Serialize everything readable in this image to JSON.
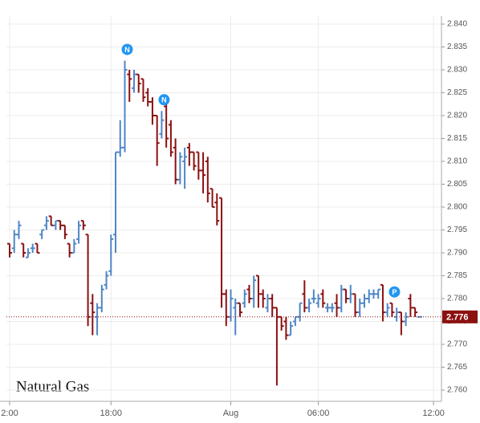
{
  "chart_data": {
    "type": "ohlc",
    "title": "Natural Gas",
    "categories": [
      "2:00",
      null,
      null,
      null,
      null,
      null,
      null,
      null,
      null,
      null,
      null,
      null,
      null,
      null,
      null,
      null,
      null,
      null,
      null,
      null,
      null,
      null,
      "18:00",
      null,
      null,
      null,
      null,
      null,
      null,
      null,
      null,
      null,
      null,
      null,
      null,
      null,
      null,
      null,
      null,
      null,
      null,
      null,
      null,
      null,
      null,
      null,
      null,
      null,
      "Aug",
      null,
      null,
      null,
      null,
      null,
      null,
      null,
      null,
      null,
      null,
      null,
      null,
      null,
      null,
      null,
      null,
      null,
      null,
      "06:00",
      null,
      null,
      null,
      null,
      null,
      null,
      null,
      null,
      null,
      null,
      null,
      null,
      null,
      null,
      null,
      null,
      null,
      null,
      null,
      null,
      null,
      null,
      null,
      null,
      "12:00"
    ],
    "open": [
      2.792,
      2.791,
      2.794,
      2.792,
      2.789,
      2.791,
      2.792,
      2.794,
      2.796,
      2.798,
      2.796,
      2.797,
      2.796,
      2.792,
      2.79,
      2.793,
      2.797,
      2.794,
      2.779,
      2.776,
      2.778,
      2.783,
      2.786,
      2.794,
      2.812,
      2.813,
      2.829,
      2.826,
      2.829,
      2.828,
      2.825,
      2.823,
      2.82,
      2.816,
      2.822,
      2.818,
      2.813,
      2.806,
      2.81,
      2.813,
      2.812,
      2.812,
      2.808,
      2.81,
      2.804,
      2.801,
      2.802,
      2.781,
      2.776,
      2.778,
      2.779,
      2.779,
      2.782,
      2.78,
      2.785,
      2.781,
      2.778,
      2.78,
      2.778,
      2.776,
      2.775,
      2.772,
      2.775,
      2.776,
      2.781,
      2.778,
      2.78,
      2.779,
      2.781,
      2.778,
      2.778,
      2.779,
      2.778,
      2.782,
      2.78,
      2.781,
      2.777,
      2.779,
      2.78,
      2.781,
      2.781,
      2.783,
      2.777,
      2.779,
      2.776,
      2.777,
      2.775,
      2.78,
      2.778,
      2.776,
      null,
      null,
      null
    ],
    "high": [
      2.792,
      2.795,
      2.797,
      2.792,
      2.791,
      2.792,
      2.792,
      2.795,
      2.798,
      2.798,
      2.797,
      2.797,
      2.796,
      2.792,
      2.793,
      2.797,
      2.797,
      2.794,
      2.781,
      2.779,
      2.783,
      2.786,
      2.794,
      2.812,
      2.819,
      2.832,
      2.83,
      2.83,
      2.829,
      2.828,
      2.826,
      2.824,
      2.82,
      2.821,
      2.823,
      2.819,
      2.815,
      2.812,
      2.813,
      2.814,
      2.812,
      2.812,
      2.812,
      2.811,
      2.804,
      2.803,
      2.802,
      2.782,
      2.782,
      2.78,
      2.779,
      2.782,
      2.783,
      2.785,
      2.785,
      2.782,
      2.781,
      2.781,
      2.778,
      2.776,
      2.776,
      2.775,
      2.776,
      2.779,
      2.784,
      2.78,
      2.782,
      2.781,
      2.782,
      2.779,
      2.779,
      2.781,
      2.783,
      2.782,
      2.783,
      2.781,
      2.78,
      2.781,
      2.782,
      2.782,
      2.782,
      2.783,
      2.779,
      2.779,
      2.778,
      2.777,
      2.777,
      2.781,
      2.778,
      2.776,
      null,
      null,
      null
    ],
    "low": [
      2.789,
      2.79,
      2.793,
      2.789,
      2.789,
      2.79,
      2.79,
      2.793,
      2.795,
      2.796,
      2.795,
      2.795,
      2.793,
      2.789,
      2.79,
      2.792,
      2.795,
      2.774,
      2.772,
      2.772,
      2.777,
      2.782,
      2.785,
      2.79,
      2.811,
      2.812,
      2.823,
      2.825,
      2.825,
      2.823,
      2.822,
      2.818,
      2.809,
      2.815,
      2.813,
      2.811,
      2.805,
      2.805,
      2.804,
      2.809,
      2.808,
      2.806,
      2.803,
      2.801,
      2.8,
      2.796,
      2.778,
      2.774,
      2.775,
      2.772,
      2.776,
      2.778,
      2.779,
      2.778,
      2.778,
      2.778,
      2.777,
      2.776,
      2.761,
      2.773,
      2.771,
      2.772,
      2.774,
      2.775,
      2.777,
      2.777,
      2.779,
      2.778,
      2.778,
      2.777,
      2.777,
      2.776,
      2.777,
      2.779,
      2.779,
      2.776,
      2.776,
      2.778,
      2.779,
      2.78,
      2.78,
      2.775,
      2.776,
      2.776,
      2.775,
      2.772,
      2.774,
      2.776,
      2.776,
      2.776,
      null,
      null,
      null
    ],
    "close": [
      2.79,
      2.794,
      2.796,
      2.79,
      2.79,
      2.791,
      2.79,
      2.795,
      2.797,
      2.796,
      2.797,
      2.796,
      2.794,
      2.79,
      2.792,
      2.796,
      2.796,
      2.776,
      2.777,
      2.778,
      2.782,
      2.785,
      2.793,
      2.812,
      2.813,
      2.83,
      2.828,
      2.829,
      2.827,
      2.824,
      2.823,
      2.82,
      2.814,
      2.819,
      2.815,
      2.812,
      2.806,
      2.811,
      2.811,
      2.812,
      2.809,
      2.808,
      2.807,
      2.803,
      2.8,
      2.797,
      2.781,
      2.776,
      2.78,
      2.779,
      2.777,
      2.781,
      2.78,
      2.784,
      2.781,
      2.78,
      2.78,
      2.778,
      2.776,
      2.774,
      2.772,
      2.774,
      2.776,
      2.779,
      2.778,
      2.779,
      2.78,
      2.78,
      2.779,
      2.778,
      2.778,
      2.778,
      2.782,
      2.78,
      2.781,
      2.777,
      2.779,
      2.78,
      2.781,
      2.781,
      2.782,
      2.777,
      2.778,
      2.777,
      2.777,
      2.775,
      2.776,
      2.778,
      2.777,
      2.776,
      null,
      null,
      null
    ],
    "markers": [
      null,
      null,
      null,
      null,
      null,
      null,
      null,
      null,
      null,
      null,
      null,
      null,
      null,
      null,
      null,
      null,
      null,
      null,
      null,
      null,
      null,
      null,
      null,
      null,
      null,
      "N",
      null,
      null,
      null,
      null,
      null,
      null,
      null,
      "N",
      null,
      null,
      null,
      null,
      null,
      null,
      null,
      null,
      null,
      null,
      null,
      null,
      null,
      null,
      null,
      null,
      null,
      null,
      null,
      null,
      null,
      null,
      null,
      null,
      null,
      null,
      null,
      null,
      null,
      null,
      null,
      null,
      null,
      null,
      null,
      null,
      null,
      null,
      null,
      null,
      null,
      null,
      null,
      null,
      null,
      null,
      null,
      null,
      null,
      "P",
      null,
      null,
      null,
      null,
      null,
      null,
      null,
      null,
      null
    ],
    "up_color": "#4f86c6",
    "down_color": "#8b1010",
    "marker_color": "#2196f3",
    "last": {
      "value": 2.776,
      "label": "2.776"
    },
    "ylim": [
      2.76,
      2.84
    ],
    "yticks": [
      {
        "value": 2.76,
        "label": "2.760"
      },
      2.765,
      {
        "value": 2.77,
        "label": "2.770"
      },
      2.775,
      {
        "value": 2.78,
        "label": "2.780"
      },
      2.785,
      {
        "value": 2.79,
        "label": "2.790"
      },
      2.795,
      {
        "value": 2.8,
        "label": "2.800"
      },
      2.805,
      {
        "value": 2.81,
        "label": "2.810"
      },
      2.815,
      {
        "value": 2.82,
        "label": "2.820"
      },
      2.825,
      {
        "value": 2.83,
        "label": "2.830"
      },
      2.835,
      {
        "value": 2.84,
        "label": "2.840"
      }
    ],
    "grid": true
  }
}
